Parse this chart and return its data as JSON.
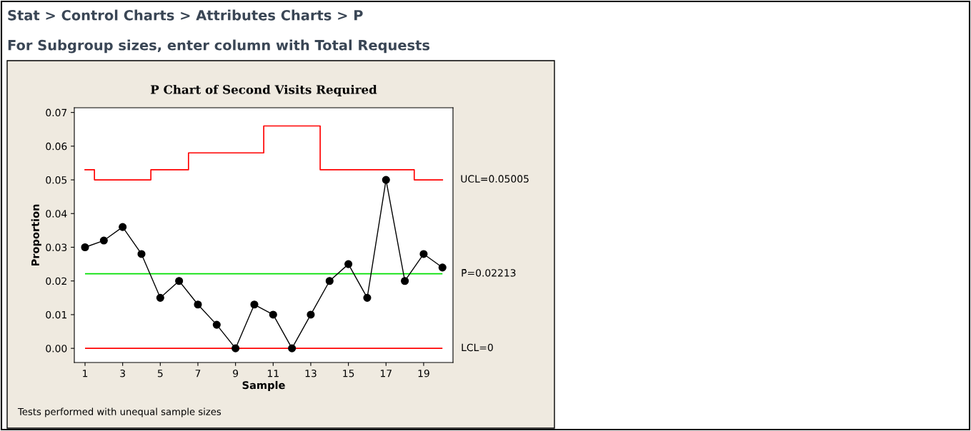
{
  "chart_data": {
    "type": "line",
    "title": "P Chart of Second Visits Required",
    "xlabel": "Sample",
    "ylabel": "Proportion",
    "x": [
      1,
      2,
      3,
      4,
      5,
      6,
      7,
      8,
      9,
      10,
      11,
      12,
      13,
      14,
      15,
      16,
      17,
      18,
      19,
      20
    ],
    "series": [
      {
        "color": "#000000",
        "marker": "circle",
        "values": [
          0.03,
          0.032,
          0.036,
          0.028,
          0.015,
          0.02,
          0.013,
          0.007,
          0.0,
          0.013,
          0.01,
          0.0,
          0.01,
          0.02,
          0.025,
          0.015,
          0.05,
          0.02,
          0.028,
          0.024
        ]
      },
      {
        "type": "step",
        "color": "#ff0000",
        "marker": "none",
        "values": [
          0.053,
          0.05,
          0.05,
          0.05,
          0.053,
          0.053,
          0.058,
          0.058,
          0.058,
          0.058,
          0.066,
          0.066,
          0.066,
          0.053,
          0.053,
          0.053,
          0.053,
          0.053,
          0.05,
          0.05
        ]
      }
    ],
    "ref_lines": [
      {
        "axis": "y",
        "value": 0.02213,
        "label": "P̄=0.02213",
        "color": "#00e000"
      },
      {
        "axis": "y",
        "value": 0,
        "label": "LCL=0",
        "color": "#ff0000"
      }
    ],
    "annotations": [
      "Stat > Control Charts > Attributes Charts > P",
      "For Subgroup sizes, enter column with Total Requests",
      "Tests performed with unequal sample sizes",
      {
        "text": "UCL=0.05005",
        "x": 20,
        "y": 0.05005
      }
    ],
    "xlim": [
      0.43,
      20.56
    ],
    "ylim": [
      -0.0042,
      0.0714
    ],
    "xticks": [
      1,
      3,
      5,
      7,
      9,
      11,
      13,
      15,
      17,
      19
    ],
    "yticks": [
      {
        "value": 0,
        "label": "0.00"
      },
      {
        "value": 0.01,
        "label": "0.01"
      },
      {
        "value": 0.02,
        "label": "0.02"
      },
      {
        "value": 0.03,
        "label": "0.03"
      },
      {
        "value": 0.04,
        "label": "0.04"
      },
      {
        "value": 0.05,
        "label": "0.05"
      },
      {
        "value": 0.06,
        "label": "0.06"
      },
      {
        "value": 0.07,
        "label": "0.07"
      }
    ],
    "grid": false,
    "legend": false
  }
}
